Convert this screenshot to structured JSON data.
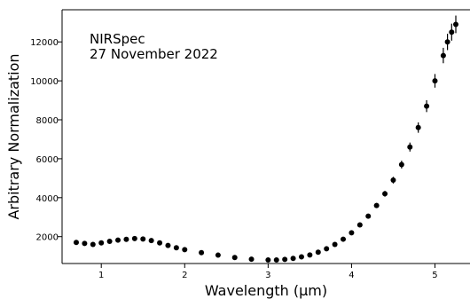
{
  "chart_data": {
    "type": "scatter",
    "title": "",
    "annotation_lines": [
      "NIRSpec",
      "27 November 2022"
    ],
    "xlabel": "Wavelength (μm)",
    "ylabel": "Arbitrary Normalization",
    "xlim": [
      0.53,
      5.42
    ],
    "ylim": [
      620,
      13650
    ],
    "xticks": [
      1,
      2,
      3,
      4,
      5
    ],
    "xtick_labels": [
      "1",
      "2",
      "3",
      "4",
      "5"
    ],
    "yticks": [
      2000,
      4000,
      6000,
      8000,
      10000,
      12000
    ],
    "ytick_labels": [
      "2000",
      "4000",
      "6000",
      "8000",
      "10000",
      "12000"
    ],
    "grid": false,
    "legend": "none",
    "marker_color": "#000000",
    "series": [
      {
        "errorbars": true,
        "x": [
          0.7,
          0.8,
          0.9,
          1.0,
          1.1,
          1.2,
          1.3,
          1.4,
          1.5,
          1.6,
          1.7,
          1.8,
          1.9,
          2.0,
          2.2,
          2.4,
          2.6,
          2.8,
          3.0,
          3.1,
          3.2,
          3.3,
          3.4,
          3.5,
          3.6,
          3.7,
          3.8,
          3.9,
          4.0,
          4.1,
          4.2,
          4.3,
          4.4,
          4.5,
          4.6,
          4.7,
          4.8,
          4.9,
          5.0,
          5.1,
          5.15,
          5.2,
          5.25
        ],
        "y": [
          1700,
          1650,
          1600,
          1680,
          1760,
          1820,
          1860,
          1900,
          1880,
          1800,
          1680,
          1550,
          1430,
          1330,
          1180,
          1050,
          930,
          840,
          800,
          800,
          830,
          880,
          960,
          1060,
          1200,
          1380,
          1600,
          1870,
          2200,
          2600,
          3050,
          3600,
          4200,
          4900,
          5700,
          6600,
          7600,
          8700,
          10000,
          11300,
          12000,
          12500,
          12900
        ]
      }
    ]
  }
}
